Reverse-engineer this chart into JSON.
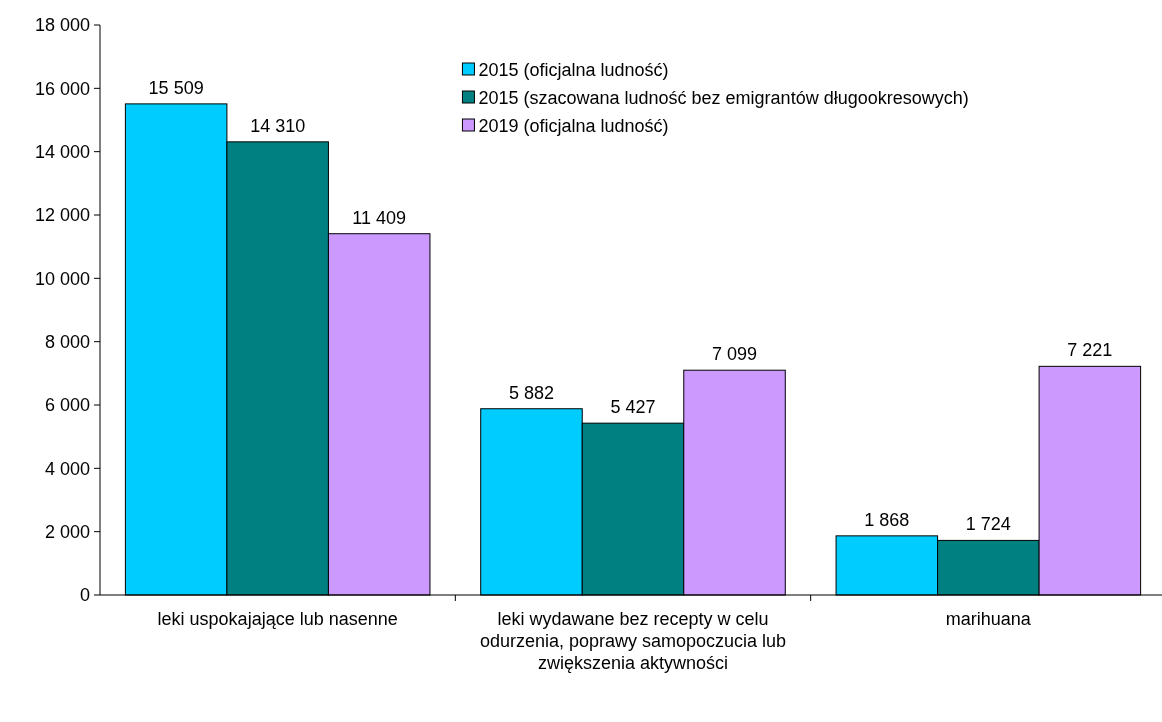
{
  "chart_data": {
    "type": "bar",
    "categories": [
      "leki uspokajające lub nasenne",
      "leki wydawane bez recepty w celu odurzenia, poprawy samopoczucia lub zwiększenia aktywności",
      "marihuana"
    ],
    "series": [
      {
        "name": "2015 (oficjalna ludność)",
        "color": "#00ccff",
        "values": [
          15509,
          5882,
          1868
        ],
        "value_labels": [
          "15 509",
          "5 882",
          "1 868"
        ]
      },
      {
        "name": "2015 (szacowana ludność bez emigrantów długookresowych)",
        "color": "#008080",
        "values": [
          14310,
          5427,
          1724
        ],
        "value_labels": [
          "14 310",
          "5 427",
          "1 724"
        ]
      },
      {
        "name": "2019 (oficjalna ludność)",
        "color": "#cc99ff",
        "values": [
          11409,
          7099,
          7221
        ],
        "value_labels": [
          "11 409",
          "7 099",
          "7 221"
        ]
      }
    ],
    "ylim": [
      0,
      18000
    ],
    "yticks": [
      0,
      {
        "value": 2000,
        "label": "2 000"
      },
      {
        "value": 4000,
        "label": "4 000"
      },
      {
        "value": 6000,
        "label": "6 000"
      },
      {
        "value": 8000,
        "label": "8 000"
      },
      {
        "value": 10000,
        "label": "10 000"
      },
      {
        "value": 12000,
        "label": "12 000"
      },
      {
        "value": 14000,
        "label": "14 000"
      },
      {
        "value": 16000,
        "label": "16 000"
      },
      {
        "value": 18000,
        "label": "18 000"
      }
    ],
    "grid": false,
    "legend": "top right"
  }
}
